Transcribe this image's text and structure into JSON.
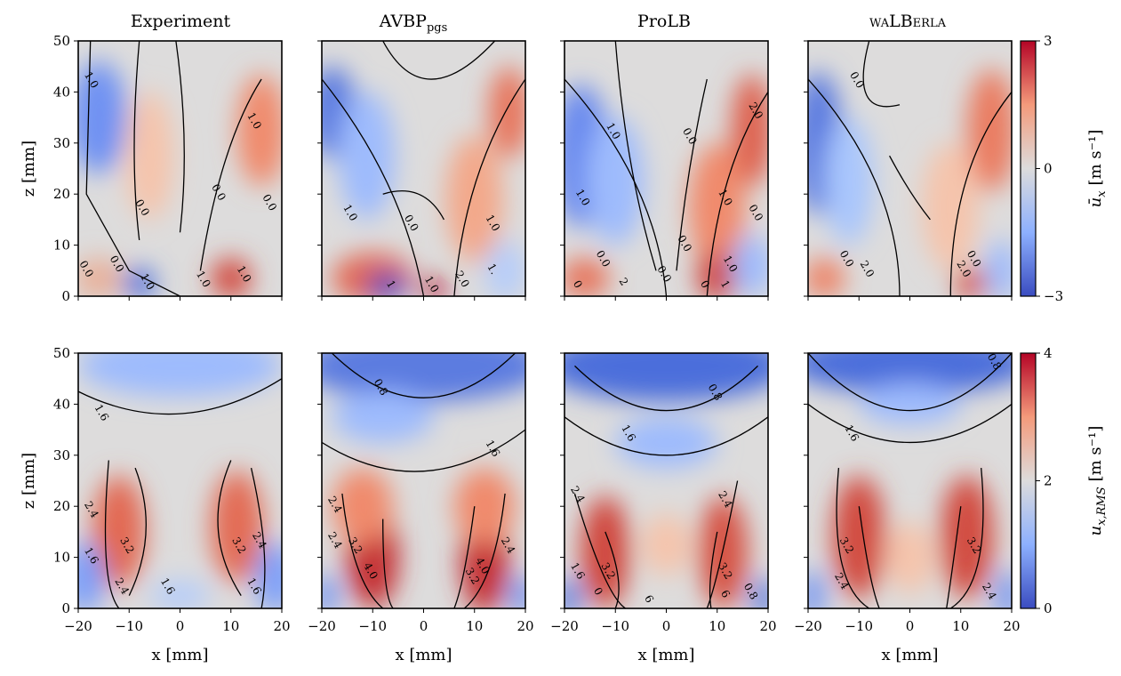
{
  "figure": {
    "column_titles": [
      "Experiment",
      "AVBP",
      "ProLB",
      "waLBerla"
    ],
    "column_title_subscripts": [
      "",
      "pgs",
      "",
      ""
    ]
  },
  "chart_data": [
    {
      "type": "heatmap",
      "row": 0,
      "col": 0,
      "title": "Experiment",
      "x_ticks": [
        -20,
        -10,
        0,
        10,
        20
      ],
      "y_ticks": [
        0,
        10,
        20,
        30,
        40,
        50
      ],
      "xlim": [
        -20,
        20
      ],
      "ylim": [
        0,
        50
      ],
      "xlabel": "",
      "ylabel": "z [mm]",
      "contour_labels": [
        {
          "text": "1.0",
          "x": -18,
          "y": 42
        },
        {
          "text": "0.0",
          "x": -8,
          "y": 17
        },
        {
          "text": "0.0",
          "x": 7,
          "y": 20
        },
        {
          "text": "1.0",
          "x": 14,
          "y": 34
        },
        {
          "text": "0.0",
          "x": 17,
          "y": 18
        },
        {
          "text": "0.0",
          "x": -19,
          "y": 5
        },
        {
          "text": "0.0",
          "x": -13,
          "y": 6
        },
        {
          "text": "1.0",
          "x": -7,
          "y": 2.5
        },
        {
          "text": "1.0",
          "x": 4,
          "y": 3
        },
        {
          "text": "1.0",
          "x": 12,
          "y": 4
        }
      ]
    },
    {
      "type": "heatmap",
      "row": 0,
      "col": 1,
      "title": "AVBP pgs",
      "x_ticks": [
        -20,
        -10,
        0,
        10,
        20
      ],
      "y_ticks": [
        0,
        10,
        20,
        30,
        40,
        50
      ],
      "xlim": [
        -20,
        20
      ],
      "ylim": [
        0,
        50
      ],
      "xlabel": "",
      "ylabel": "",
      "contour_labels": [
        {
          "text": "1.0",
          "x": -15,
          "y": 16
        },
        {
          "text": "0.0",
          "x": -3,
          "y": 14
        },
        {
          "text": "1.0",
          "x": 13,
          "y": 14
        },
        {
          "text": "1",
          "x": -7,
          "y": 2
        },
        {
          "text": "1.0",
          "x": 1,
          "y": 2
        },
        {
          "text": "2.0",
          "x": 7,
          "y": 3
        },
        {
          "text": "1.",
          "x": 13,
          "y": 5
        }
      ]
    },
    {
      "type": "heatmap",
      "row": 0,
      "col": 2,
      "title": "ProLB",
      "x_ticks": [
        -20,
        -10,
        0,
        10,
        20
      ],
      "y_ticks": [
        0,
        10,
        20,
        30,
        40,
        50
      ],
      "xlim": [
        -20,
        20
      ],
      "ylim": [
        0,
        50
      ],
      "xlabel": "",
      "ylabel": "",
      "contour_labels": [
        {
          "text": "1.0",
          "x": -11,
          "y": 32
        },
        {
          "text": "1.0",
          "x": -17,
          "y": 19
        },
        {
          "text": "0.0",
          "x": 4,
          "y": 31
        },
        {
          "text": "2.0",
          "x": 17,
          "y": 36
        },
        {
          "text": "1.0",
          "x": 11,
          "y": 19
        },
        {
          "text": "0.0",
          "x": 17,
          "y": 16
        },
        {
          "text": "0.0",
          "x": -13,
          "y": 7
        },
        {
          "text": "0.0",
          "x": -1,
          "y": 4
        },
        {
          "text": "0.0",
          "x": 3,
          "y": 10
        },
        {
          "text": "1.0",
          "x": 12,
          "y": 6
        },
        {
          "text": "2",
          "x": -9,
          "y": 2.5
        },
        {
          "text": "0",
          "x": 7,
          "y": 2
        },
        {
          "text": "1",
          "x": 11,
          "y": 2
        },
        {
          "text": "0",
          "x": -18,
          "y": 2
        }
      ]
    },
    {
      "type": "heatmap",
      "row": 0,
      "col": 3,
      "title": "waLBerla",
      "x_ticks": [
        -20,
        -10,
        0,
        10,
        20
      ],
      "y_ticks": [
        0,
        10,
        20,
        30,
        40,
        50
      ],
      "xlim": [
        -20,
        20
      ],
      "ylim": [
        0,
        50
      ],
      "xlabel": "",
      "ylabel": "",
      "contour_labels": [
        {
          "text": "0.0",
          "x": -11,
          "y": 42
        },
        {
          "text": "0.0",
          "x": -13,
          "y": 7
        },
        {
          "text": "2.0",
          "x": -9,
          "y": 5
        },
        {
          "text": "2.0",
          "x": 10,
          "y": 5
        },
        {
          "text": "0.0",
          "x": 12,
          "y": 7
        }
      ]
    },
    {
      "type": "heatmap",
      "row": 1,
      "col": 0,
      "title": "",
      "x_ticks": [
        -20,
        -10,
        0,
        10,
        20
      ],
      "y_ticks": [
        0,
        10,
        20,
        30,
        40,
        50
      ],
      "xlim": [
        -20,
        20
      ],
      "ylim": [
        0,
        50
      ],
      "xlabel": "x [mm]",
      "ylabel": "z [mm]",
      "contour_labels": [
        {
          "text": "1.6",
          "x": -16,
          "y": 38
        },
        {
          "text": "2.4",
          "x": -18,
          "y": 19
        },
        {
          "text": "1.6",
          "x": -18,
          "y": 10
        },
        {
          "text": "3.2",
          "x": -11,
          "y": 12
        },
        {
          "text": "2.4",
          "x": -12,
          "y": 4
        },
        {
          "text": "1.6",
          "x": -3,
          "y": 4
        },
        {
          "text": "3.2",
          "x": 11,
          "y": 12
        },
        {
          "text": "2.4",
          "x": 15,
          "y": 13
        },
        {
          "text": "1.6",
          "x": 14,
          "y": 4
        }
      ]
    },
    {
      "type": "heatmap",
      "row": 1,
      "col": 1,
      "title": "",
      "x_ticks": [
        -20,
        -10,
        0,
        10,
        20
      ],
      "y_ticks": [
        0,
        10,
        20,
        30,
        40,
        50
      ],
      "xlim": [
        -20,
        20
      ],
      "ylim": [
        0,
        50
      ],
      "xlabel": "x [mm]",
      "ylabel": "",
      "contour_labels": [
        {
          "text": "0.8",
          "x": -9,
          "y": 43
        },
        {
          "text": "1.6",
          "x": 13,
          "y": 31
        },
        {
          "text": "2.4",
          "x": -18,
          "y": 20
        },
        {
          "text": "2.4",
          "x": -18,
          "y": 13
        },
        {
          "text": "3.2",
          "x": -14,
          "y": 12
        },
        {
          "text": "4.0",
          "x": -11,
          "y": 7
        },
        {
          "text": "4.0",
          "x": 11,
          "y": 8
        },
        {
          "text": "3.2",
          "x": 9,
          "y": 6
        },
        {
          "text": "2.4",
          "x": 16,
          "y": 12
        }
      ]
    },
    {
      "type": "heatmap",
      "row": 1,
      "col": 2,
      "title": "",
      "x_ticks": [
        -20,
        -10,
        0,
        10,
        20
      ],
      "y_ticks": [
        0,
        10,
        20,
        30,
        40,
        50
      ],
      "xlim": [
        -20,
        20
      ],
      "ylim": [
        0,
        50
      ],
      "xlabel": "x [mm]",
      "ylabel": "",
      "contour_labels": [
        {
          "text": "0.8",
          "x": 9,
          "y": 42
        },
        {
          "text": "1.6",
          "x": -8,
          "y": 34
        },
        {
          "text": "2.4",
          "x": -18,
          "y": 22
        },
        {
          "text": "2.4",
          "x": 11,
          "y": 21
        },
        {
          "text": "1.6",
          "x": -18,
          "y": 7
        },
        {
          "text": "3.2",
          "x": -12,
          "y": 7
        },
        {
          "text": "0",
          "x": -14,
          "y": 3
        },
        {
          "text": "6",
          "x": -4,
          "y": 1.5
        },
        {
          "text": "3.2",
          "x": 11,
          "y": 7
        },
        {
          "text": "6",
          "x": 11,
          "y": 2.5
        },
        {
          "text": "0.8",
          "x": 16,
          "y": 3
        }
      ]
    },
    {
      "type": "heatmap",
      "row": 1,
      "col": 3,
      "title": "",
      "x_ticks": [
        -20,
        -10,
        0,
        10,
        20
      ],
      "y_ticks": [
        0,
        10,
        20,
        30,
        40,
        50
      ],
      "xlim": [
        -20,
        20
      ],
      "ylim": [
        0,
        50
      ],
      "xlabel": "x [mm]",
      "ylabel": "",
      "contour_labels": [
        {
          "text": "0.8",
          "x": 16,
          "y": 48
        },
        {
          "text": "1.6",
          "x": -12,
          "y": 34
        },
        {
          "text": "3.2",
          "x": -13,
          "y": 12
        },
        {
          "text": "2.4",
          "x": -14,
          "y": 5
        },
        {
          "text": "3.2",
          "x": 12,
          "y": 12
        },
        {
          "text": "2.4",
          "x": 15,
          "y": 3
        }
      ]
    }
  ],
  "colorbars": [
    {
      "row": 0,
      "ticks": [
        3,
        0,
        -3
      ],
      "tick_labels": [
        "3",
        "0",
        "−3"
      ],
      "range": [
        -3,
        3
      ],
      "label": "ū",
      "label_sub": "x",
      "label_units": "[m s⁻¹]"
    },
    {
      "row": 1,
      "ticks": [
        4,
        2,
        0
      ],
      "tick_labels": [
        "4",
        "2",
        "0"
      ],
      "range": [
        0,
        4
      ],
      "label": "u",
      "label_sub": "x,RMS",
      "label_units": "[m s⁻¹]"
    }
  ],
  "colors": {
    "low": "#3a4cc0",
    "mid": "#dddcdc",
    "high": "#b40426"
  }
}
